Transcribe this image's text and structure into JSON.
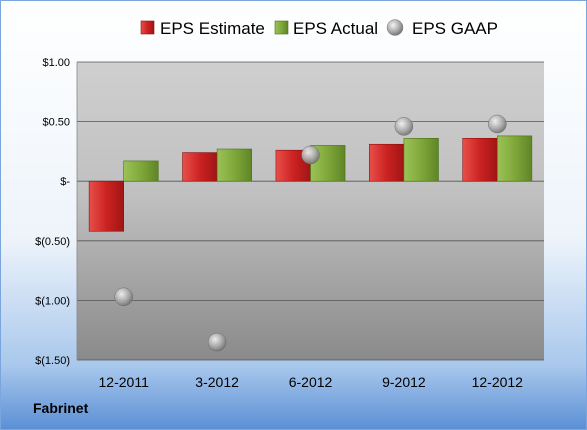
{
  "company_name": "Fabrinet",
  "chart_data": {
    "type": "bar",
    "categories": [
      "12-2011",
      "3-2012",
      "6-2012",
      "9-2012",
      "12-2012"
    ],
    "series": [
      {
        "name": "EPS Estimate",
        "kind": "bar",
        "color": "#cc2222",
        "values": [
          -0.42,
          0.24,
          0.26,
          0.31,
          0.36
        ]
      },
      {
        "name": "EPS Actual",
        "kind": "bar",
        "color": "#7fa83a",
        "values": [
          0.17,
          0.27,
          0.3,
          0.36,
          0.38
        ]
      },
      {
        "name": "EPS GAAP",
        "kind": "marker",
        "color": "#a0a0a0",
        "values": [
          -0.97,
          -1.35,
          0.22,
          0.46,
          0.48
        ]
      }
    ],
    "yticks": [
      {
        "value": 1.0,
        "label": "$1.00"
      },
      {
        "value": 0.5,
        "label": "$0.50"
      },
      {
        "value": 0,
        "label": "$-"
      },
      {
        "value": -0.5,
        "label": "$(0.50)"
      },
      {
        "value": -1.0,
        "label": "$(1.00)"
      },
      {
        "value": -1.5,
        "label": "$(1.50)"
      }
    ],
    "ylim": [
      -1.5,
      1.0
    ],
    "grid": true,
    "legend": "top"
  }
}
